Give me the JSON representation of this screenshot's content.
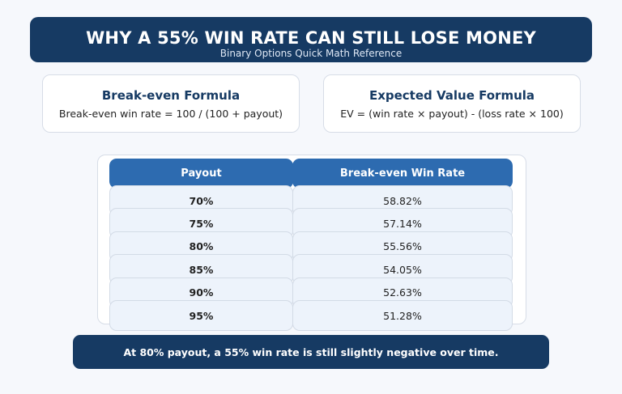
{
  "header": {
    "title": "WHY A 55% WIN RATE CAN STILL LOSE MONEY",
    "subtitle": "Binary Options Quick Math Reference"
  },
  "cards": [
    {
      "title": "Break-even Formula",
      "formula": "Break-even win rate = 100 / (100 + payout)"
    },
    {
      "title": "Expected Value Formula",
      "formula": "EV = (win rate × payout) - (loss rate × 100)"
    }
  ],
  "table": {
    "columns": [
      "Payout",
      "Break-even Win Rate"
    ],
    "rows": [
      [
        "70%",
        "58.82%"
      ],
      [
        "75%",
        "57.14%"
      ],
      [
        "80%",
        "55.56%"
      ],
      [
        "85%",
        "54.05%"
      ],
      [
        "90%",
        "52.63%"
      ],
      [
        "95%",
        "51.28%"
      ]
    ]
  },
  "footer": {
    "note": "At 80% payout, a 55% win rate is still slightly negative over time."
  },
  "colors": {
    "navy": "#163a63",
    "header_blue": "#2d6bb0",
    "row_bg": "#edf3fb"
  }
}
